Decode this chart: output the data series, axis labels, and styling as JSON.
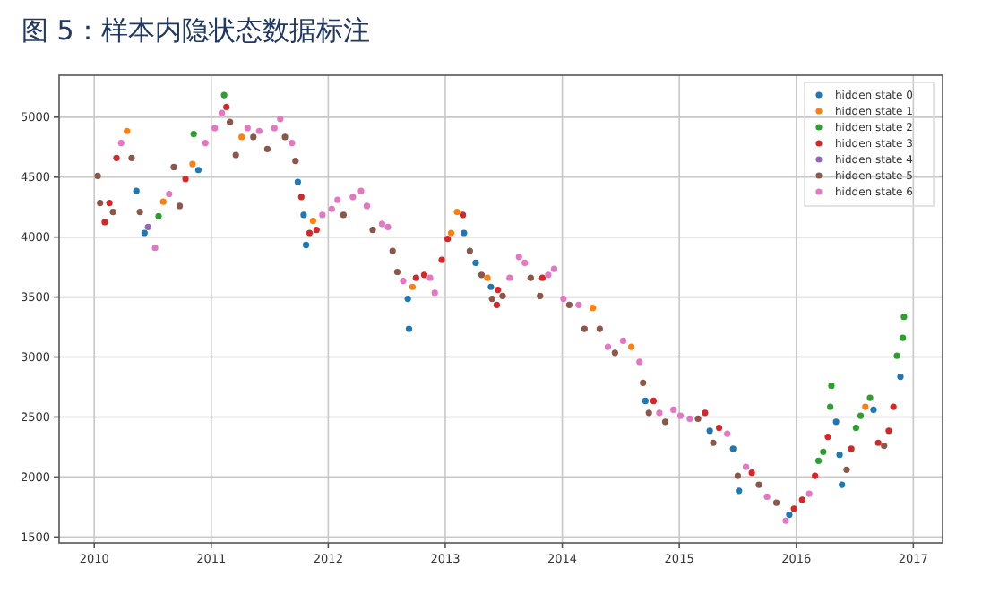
{
  "chart_data": {
    "type": "scatter",
    "title": "图 5：样本内隐状态数据标注",
    "xlim": [
      2009.7,
      2017.25
    ],
    "ylim": [
      1450,
      5350
    ],
    "xticks": [
      2010,
      2011,
      2012,
      2013,
      2014,
      2015,
      2016,
      2017
    ],
    "yticks": [
      1500,
      2000,
      2500,
      3000,
      3500,
      4000,
      4500,
      5000
    ],
    "grid": true,
    "legend": "top right",
    "marker": "circle",
    "series": [
      {
        "name": "hidden state 0",
        "color": "#1f77b4",
        "x": [
          2010.36,
          2010.43,
          2010.89,
          2011.74,
          2011.79,
          2011.81,
          2012.68,
          2012.69,
          2013.16,
          2013.26,
          2013.39,
          2014.71,
          2015.26,
          2015.46,
          2015.51,
          2015.94,
          2016.34,
          2016.37,
          2016.39,
          2016.66,
          2016.89
        ],
        "values": [
          4385,
          4035,
          4560,
          4460,
          4185,
          3935,
          3485,
          3235,
          4035,
          3785,
          3585,
          2635,
          2385,
          2235,
          1885,
          1685,
          2460,
          2185,
          1935,
          2560,
          2835
        ]
      },
      {
        "name": "hidden state 1",
        "color": "#ff7f0e",
        "x": [
          2010.28,
          2010.59,
          2010.84,
          2011.26,
          2011.87,
          2012.72,
          2013.05,
          2013.1,
          2013.36,
          2014.26,
          2014.59,
          2016.59
        ],
        "values": [
          4885,
          4295,
          4610,
          4835,
          4135,
          3585,
          4035,
          4210,
          3660,
          3410,
          3085,
          2585
        ]
      },
      {
        "name": "hidden state 2",
        "color": "#2ca02c",
        "x": [
          2010.55,
          2010.85,
          2011.11,
          2016.19,
          2016.23,
          2016.29,
          2016.3,
          2016.51,
          2016.55,
          2016.63,
          2016.86,
          2016.91,
          2016.92
        ],
        "values": [
          4175,
          4860,
          5185,
          2135,
          2210,
          2585,
          2760,
          2410,
          2510,
          2660,
          3010,
          3160,
          3335
        ]
      },
      {
        "name": "hidden state 3",
        "color": "#d62728",
        "x": [
          2010.09,
          2010.13,
          2010.19,
          2010.78,
          2011.13,
          2011.77,
          2011.84,
          2011.9,
          2012.75,
          2012.82,
          2012.97,
          2013.02,
          2013.15,
          2013.44,
          2013.45,
          2013.83,
          2014.78,
          2015.22,
          2015.34,
          2015.62,
          2015.98,
          2016.05,
          2016.16,
          2016.27,
          2016.47,
          2016.7,
          2016.79,
          2016.83
        ],
        "values": [
          4125,
          4285,
          4660,
          4485,
          5085,
          4335,
          4035,
          4060,
          3660,
          3685,
          3810,
          3985,
          4185,
          3435,
          3560,
          3660,
          2635,
          2535,
          2410,
          2035,
          1735,
          1810,
          2010,
          2335,
          2235,
          2285,
          2385,
          2585
        ]
      },
      {
        "name": "hidden state 4",
        "color": "#9467bd",
        "x": [
          2010.46
        ],
        "values": [
          4085
        ]
      },
      {
        "name": "hidden state 5",
        "color": "#8c564b",
        "x": [
          2010.03,
          2010.05,
          2010.16,
          2010.32,
          2010.39,
          2010.68,
          2010.73,
          2011.16,
          2011.21,
          2011.36,
          2011.48,
          2011.63,
          2011.72,
          2012.13,
          2012.38,
          2012.55,
          2012.59,
          2013.21,
          2013.31,
          2013.4,
          2013.49,
          2013.73,
          2013.81,
          2014.06,
          2014.19,
          2014.32,
          2014.45,
          2014.69,
          2014.74,
          2014.88,
          2015.16,
          2015.29,
          2015.5,
          2015.68,
          2015.83,
          2016.43,
          2016.75
        ],
        "values": [
          4510,
          4285,
          4210,
          4660,
          4210,
          4585,
          4260,
          4960,
          4685,
          4835,
          4735,
          4835,
          4635,
          4185,
          4060,
          3885,
          3710,
          3885,
          3685,
          3485,
          3510,
          3660,
          3510,
          3435,
          3235,
          3235,
          3035,
          2785,
          2535,
          2460,
          2485,
          2285,
          2010,
          1935,
          1785,
          2060,
          2260
        ]
      },
      {
        "name": "hidden state 6",
        "color": "#e377c2",
        "x": [
          2010.23,
          2010.52,
          2010.64,
          2010.95,
          2011.03,
          2011.09,
          2011.31,
          2011.41,
          2011.54,
          2011.59,
          2011.69,
          2011.95,
          2012.03,
          2012.08,
          2012.21,
          2012.28,
          2012.33,
          2012.46,
          2012.51,
          2012.64,
          2012.87,
          2012.91,
          2013.55,
          2013.63,
          2013.68,
          2013.88,
          2013.93,
          2014.01,
          2014.14,
          2014.39,
          2014.52,
          2014.66,
          2014.83,
          2014.95,
          2015.01,
          2015.09,
          2015.41,
          2015.57,
          2015.75,
          2015.91,
          2016.11
        ],
        "values": [
          4785,
          3910,
          4360,
          4785,
          4910,
          5035,
          4910,
          4885,
          4910,
          4985,
          4785,
          4185,
          4235,
          4310,
          4335,
          4385,
          4260,
          4110,
          4085,
          3635,
          3660,
          3535,
          3660,
          3835,
          3785,
          3685,
          3735,
          3485,
          3435,
          3085,
          3135,
          2960,
          2535,
          2560,
          2510,
          2485,
          2360,
          2085,
          1835,
          1635,
          1860
        ]
      }
    ]
  }
}
